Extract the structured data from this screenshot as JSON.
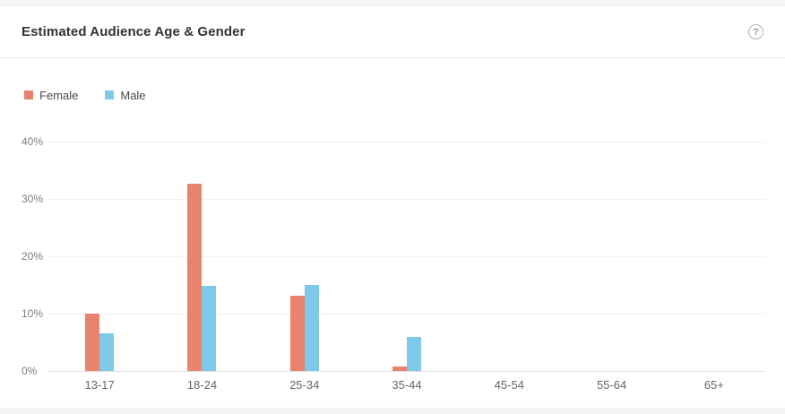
{
  "page": {
    "background": "#f4f4f4"
  },
  "card": {
    "title": "Estimated Audience Age & Gender",
    "help_glyph": "?"
  },
  "chart_data": {
    "type": "bar",
    "title": "Estimated Audience Age & Gender",
    "categories": [
      "13-17",
      "18-24",
      "25-34",
      "35-44",
      "45-54",
      "55-64",
      "65+"
    ],
    "series": [
      {
        "name": "Female",
        "color": "#E8836E",
        "values": [
          10.0,
          32.7,
          13.2,
          0.8,
          0,
          0,
          0
        ]
      },
      {
        "name": "Male",
        "color": "#7EC8E8",
        "values": [
          6.5,
          14.8,
          15.0,
          5.9,
          0,
          0,
          0
        ]
      }
    ],
    "xlabel": "",
    "ylabel": "",
    "ylim": [
      0,
      40
    ],
    "yticks": [
      0,
      10,
      20,
      30,
      40
    ],
    "ytick_suffix": "%",
    "grid": true,
    "legend_position": "top-left"
  }
}
